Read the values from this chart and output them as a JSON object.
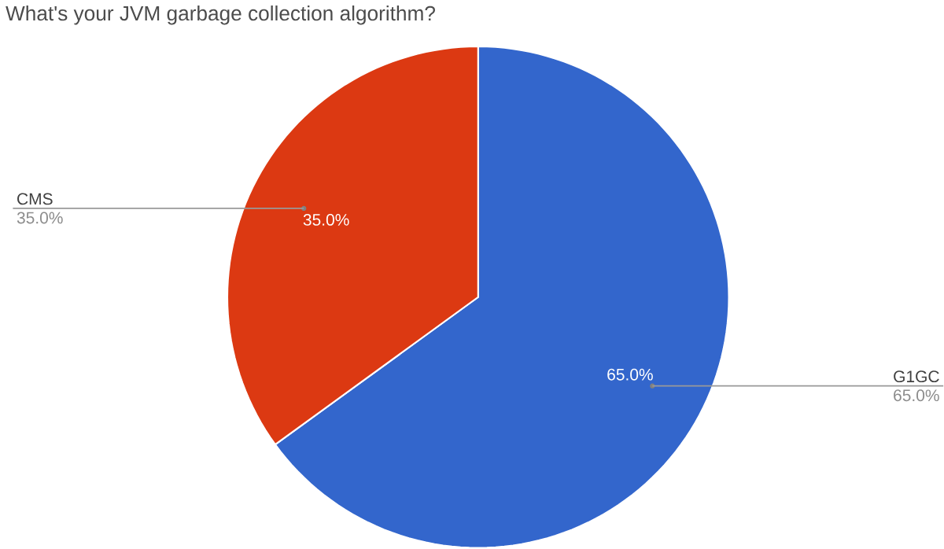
{
  "chart_data": {
    "type": "pie",
    "title": "What's your JVM garbage collection algorithm?",
    "categories": [
      "G1GC",
      "CMS"
    ],
    "values": [
      65.0,
      35.0
    ],
    "colors": [
      "#3366cc",
      "#dc3912"
    ],
    "value_labels": [
      "65.0%",
      "35.0%"
    ]
  }
}
